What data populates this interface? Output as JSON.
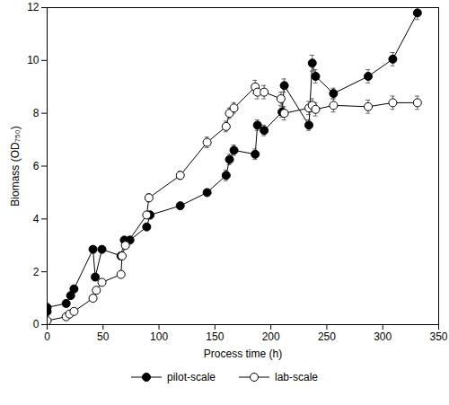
{
  "chart_data": {
    "type": "line",
    "xlabel": "Process time (h)",
    "ylabel": "Biomass (OD₇₅₀)",
    "xlim": [
      0,
      350
    ],
    "xticks": [
      0,
      50,
      100,
      150,
      200,
      250,
      300,
      350
    ],
    "ylim": [
      0,
      12
    ],
    "yticks": [
      0,
      2,
      4,
      6,
      8,
      10,
      12
    ],
    "grid": false,
    "legend": "bottom",
    "series": [
      {
        "name": "pilot-scale",
        "color": "#000000",
        "marker": "filled circle",
        "line_style": "solid",
        "x": [
          0,
          0,
          17,
          21,
          24,
          41,
          43,
          49,
          66,
          69,
          74,
          89,
          92,
          119,
          143,
          160,
          163,
          167,
          186,
          188,
          194,
          210,
          212,
          234,
          237,
          240,
          256,
          287,
          309,
          331
        ],
        "values": [
          0.5,
          0.65,
          0.8,
          1.1,
          1.35,
          2.85,
          1.8,
          2.85,
          2.6,
          3.2,
          3.2,
          3.7,
          4.15,
          4.5,
          5.0,
          5.65,
          6.25,
          6.6,
          6.45,
          7.55,
          7.35,
          8.05,
          9.05,
          7.55,
          9.9,
          9.4,
          8.75,
          9.4,
          10.05,
          11.8
        ],
        "errors": [
          0.15,
          0.15,
          0.1,
          0.1,
          0.1,
          0.1,
          0.1,
          0.1,
          0.1,
          0.1,
          0.1,
          0.1,
          0.15,
          0.1,
          0.1,
          0.2,
          0.2,
          0.2,
          0.2,
          0.2,
          0.2,
          0.2,
          0.25,
          0.2,
          0.3,
          0.25,
          0.2,
          0.25,
          0.25,
          0.25
        ]
      },
      {
        "name": "lab-scale",
        "color": "#000000",
        "marker": "open circle",
        "line_style": "solid",
        "x": [
          0,
          17,
          20,
          24,
          41,
          44,
          49,
          66,
          67,
          70,
          89,
          91,
          119,
          143,
          160,
          163,
          167,
          186,
          188,
          194,
          209,
          212,
          234,
          237,
          240,
          256,
          287,
          309,
          331
        ],
        "values": [
          0.15,
          0.3,
          0.4,
          0.5,
          1.0,
          1.3,
          1.6,
          1.9,
          2.6,
          3.0,
          4.15,
          4.8,
          5.65,
          6.9,
          7.5,
          8.0,
          8.2,
          9.0,
          8.8,
          8.8,
          8.55,
          8.0,
          8.2,
          8.3,
          8.15,
          8.3,
          8.25,
          8.4,
          8.4
        ],
        "errors": [
          0.1,
          0.1,
          0.1,
          0.1,
          0.1,
          0.1,
          0.1,
          0.1,
          0.1,
          0.1,
          0.1,
          0.15,
          0.15,
          0.2,
          0.2,
          0.2,
          0.2,
          0.25,
          0.25,
          0.25,
          0.25,
          0.25,
          0.25,
          0.25,
          0.25,
          0.25,
          0.25,
          0.25,
          0.25
        ]
      }
    ]
  }
}
